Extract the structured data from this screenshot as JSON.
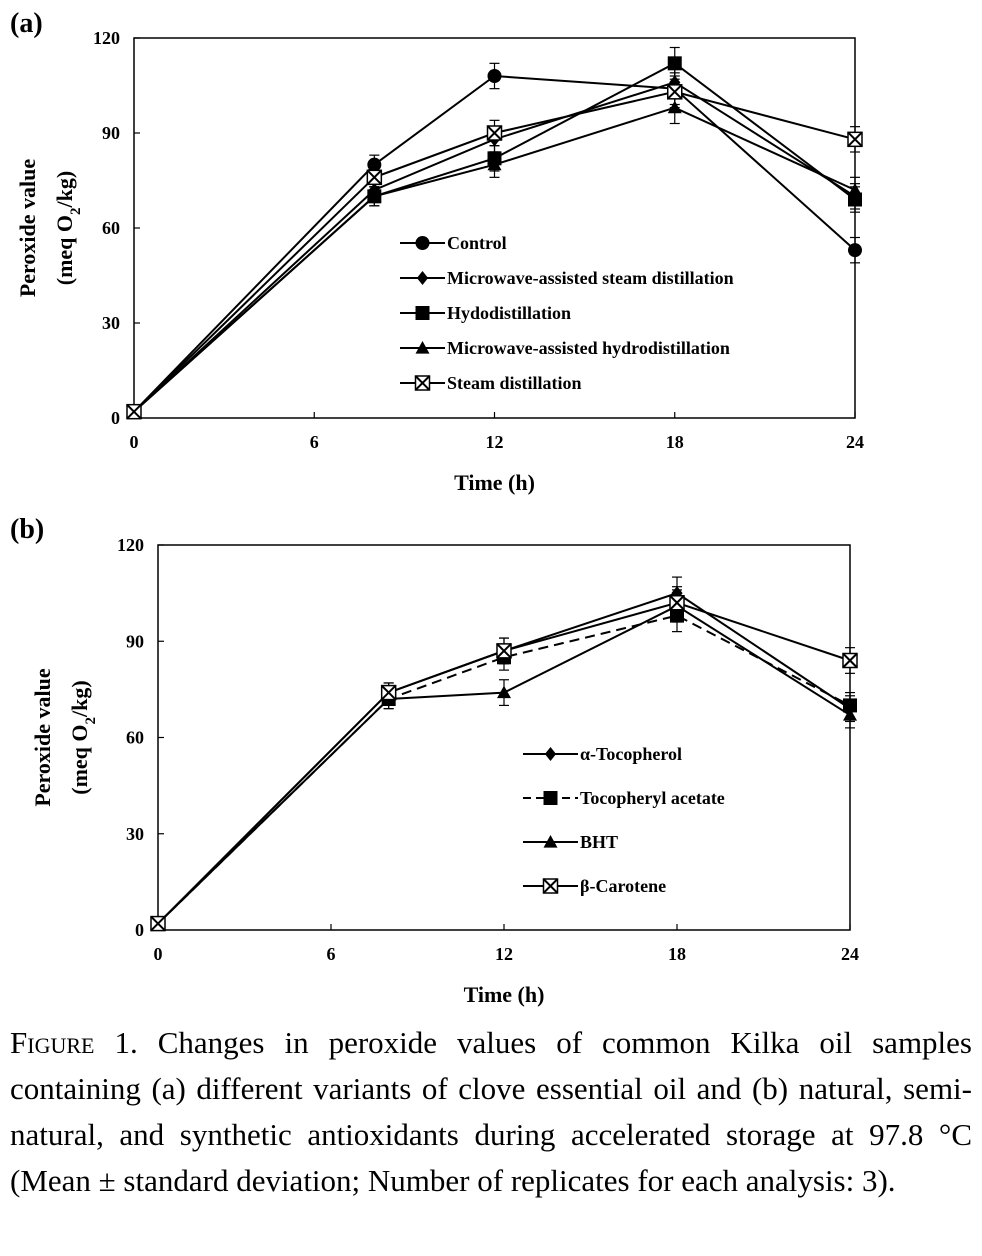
{
  "chart_data": [
    {
      "type": "line",
      "panel_label": "(a)",
      "xlabel": "Time (h)",
      "ylabel_line1": "Peroxide value",
      "ylabel_line2": "(meq O",
      "ylabel_sub": "2",
      "ylabel_line2_end": "/kg)",
      "xlim": [
        0,
        24
      ],
      "ylim": [
        0,
        120
      ],
      "xticks": [
        0,
        6,
        12,
        18,
        24
      ],
      "yticks": [
        0,
        30,
        60,
        90,
        120
      ],
      "grid": false,
      "legend_position": "center-right",
      "x": [
        0,
        8,
        12,
        18,
        24
      ],
      "series": [
        {
          "name": "Control",
          "marker": "circle",
          "dash": "solid",
          "values": [
            2,
            80,
            108,
            104,
            53
          ],
          "errors": [
            1,
            3,
            4,
            5,
            4
          ]
        },
        {
          "name": "Microwave-assisted steam distillation",
          "marker": "diamond",
          "dash": "solid",
          "values": [
            2,
            72,
            88,
            106,
            70
          ],
          "errors": [
            1,
            3,
            4,
            5,
            4
          ]
        },
        {
          "name": "Hydodistillation",
          "marker": "square",
          "dash": "solid",
          "values": [
            2,
            70,
            82,
            112,
            69
          ],
          "errors": [
            1,
            3,
            4,
            5,
            4
          ]
        },
        {
          "name": "Microwave-assisted hydrodistillation",
          "marker": "triangle",
          "dash": "solid",
          "values": [
            2,
            70,
            80,
            98,
            72
          ],
          "errors": [
            1,
            3,
            4,
            5,
            4
          ]
        },
        {
          "name": "Steam distillation",
          "marker": "xsquare",
          "dash": "solid",
          "values": [
            2,
            76,
            90,
            103,
            88
          ],
          "errors": [
            1,
            3,
            4,
            5,
            4
          ]
        }
      ]
    },
    {
      "type": "line",
      "panel_label": "(b)",
      "xlabel": "Time (h)",
      "ylabel_line1": "Peroxide value",
      "ylabel_line2": "(meq O",
      "ylabel_sub": "2",
      "ylabel_line2_end": "/kg)",
      "xlim": [
        0,
        24
      ],
      "ylim": [
        0,
        120
      ],
      "xticks": [
        0,
        6,
        12,
        18,
        24
      ],
      "yticks": [
        0,
        30,
        60,
        90,
        120
      ],
      "grid": false,
      "legend_position": "center-right",
      "x": [
        0,
        8,
        12,
        18,
        24
      ],
      "series": [
        {
          "name": "α-Tocopherol",
          "marker": "diamond",
          "dash": "solid",
          "values": [
            2,
            74,
            87,
            105,
            69
          ],
          "errors": [
            1,
            3,
            4,
            5,
            4
          ]
        },
        {
          "name": "Tocopheryl acetate",
          "marker": "square",
          "dash": "dashed",
          "values": [
            2,
            72,
            85,
            98,
            70
          ],
          "errors": [
            1,
            3,
            4,
            5,
            4
          ]
        },
        {
          "name": "BHT",
          "marker": "triangle",
          "dash": "solid",
          "values": [
            2,
            72,
            74,
            101,
            67
          ],
          "errors": [
            1,
            3,
            4,
            5,
            4
          ]
        },
        {
          "name": "β-Carotene",
          "marker": "xsquare",
          "dash": "solid",
          "values": [
            2,
            74,
            87,
            102,
            84
          ],
          "errors": [
            1,
            3,
            4,
            5,
            4
          ]
        }
      ]
    }
  ],
  "caption": {
    "lead": "Figure",
    "text": " 1. Changes in peroxide values of common Kilka oil samples containing (a) different variants of clove essential oil and (b) natural, semi-natural, and synthetic antioxidants during accelerated storage at 97.8 °C (Mean ± standard deviation; Number of replicates for each analysis: 3)."
  }
}
